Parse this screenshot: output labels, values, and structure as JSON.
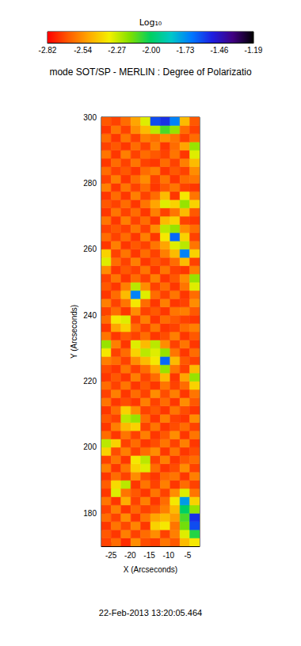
{
  "chart_data": {
    "type": "heatmap",
    "title": "mode SOT/SP - MERLIN : Degree of Polarizatio",
    "x_label": "X (Arcseconds)",
    "y_label": "Y (Arcseconds)",
    "annotation": "22-Feb-2013 13:20:05.464",
    "xlim": [
      -27.5,
      -1.9
    ],
    "xticks": [
      -25,
      -20,
      -15,
      -10,
      -5
    ],
    "ylim": [
      170,
      300
    ],
    "yticks": [
      180,
      200,
      220,
      240,
      260,
      280,
      300
    ],
    "cells": {
      "x_edges": [
        -27.5,
        -24.94,
        -22.38,
        -19.82,
        -17.26,
        -14.7,
        -12.14,
        -9.58,
        -7.02,
        -4.46,
        -1.9
      ],
      "y_edges": [
        170,
        172.5,
        175,
        177.5,
        180,
        182.5,
        185,
        187.5,
        190,
        192.5,
        195,
        197.5,
        200,
        202.5,
        205,
        207.5,
        210,
        212.5,
        215,
        217.5,
        220,
        222.5,
        225,
        227.5,
        230,
        232.5,
        235,
        237.5,
        240,
        242.5,
        245,
        247.5,
        250,
        252.5,
        255,
        257.5,
        260,
        262.5,
        265,
        267.5,
        270,
        272.5,
        275,
        277.5,
        280,
        282.5,
        285,
        287.5,
        290,
        292.5,
        295,
        297.5,
        300
      ],
      "values": [
        [
          -2.7,
          -2.62,
          -2.74,
          -2.55,
          -2.68,
          -2.71,
          -2.6,
          -2.66,
          -2.45,
          -2.35
        ],
        [
          -2.66,
          -2.72,
          -2.58,
          -2.7,
          -2.62,
          -2.55,
          -2.7,
          -2.58,
          -2.3,
          -2.05
        ],
        [
          -2.72,
          -2.6,
          -2.69,
          -2.57,
          -2.72,
          -2.4,
          -2.35,
          -2.6,
          -2.15,
          -1.6
        ],
        [
          -2.62,
          -2.7,
          -2.55,
          -2.72,
          -2.6,
          -2.5,
          -2.45,
          -2.52,
          -2.1,
          -1.55
        ],
        [
          -2.7,
          -2.58,
          -2.72,
          -2.63,
          -2.7,
          -2.66,
          -2.58,
          -2.45,
          -2.0,
          -2.2
        ],
        [
          -2.6,
          -2.72,
          -2.48,
          -2.7,
          -2.58,
          -2.72,
          -2.62,
          -2.35,
          -1.75,
          -2.4
        ],
        [
          -2.72,
          -2.3,
          -2.6,
          -2.66,
          -2.72,
          -2.6,
          -2.7,
          -2.55,
          -2.3,
          -2.6
        ],
        [
          -2.65,
          -2.38,
          -2.25,
          -2.72,
          -2.6,
          -2.7,
          -2.58,
          -2.72,
          -2.62,
          -2.7
        ],
        [
          -2.72,
          -2.62,
          -2.7,
          -2.55,
          -2.68,
          -2.72,
          -2.63,
          -2.6,
          -2.72,
          -2.58
        ],
        [
          -2.58,
          -2.72,
          -2.6,
          -2.4,
          -2.3,
          -2.62,
          -2.72,
          -2.68,
          -2.55,
          -2.7
        ],
        [
          -2.7,
          -2.6,
          -2.72,
          -2.35,
          -2.25,
          -2.7,
          -2.58,
          -2.72,
          -2.66,
          -2.62
        ],
        [
          -2.4,
          -2.68,
          -2.58,
          -2.7,
          -2.62,
          -2.55,
          -2.72,
          -2.6,
          -2.72,
          -2.68
        ],
        [
          -2.25,
          -2.4,
          -2.7,
          -2.62,
          -2.72,
          -2.68,
          -2.6,
          -2.7,
          -2.58,
          -2.72
        ],
        [
          -2.62,
          -2.72,
          -2.6,
          -2.7,
          -2.58,
          -2.72,
          -2.66,
          -2.55,
          -2.72,
          -2.6
        ],
        [
          -2.72,
          -2.58,
          -2.45,
          -2.4,
          -2.7,
          -2.6,
          -2.72,
          -2.68,
          -2.62,
          -2.7
        ],
        [
          -2.66,
          -2.7,
          -2.25,
          -2.2,
          -2.62,
          -2.72,
          -2.58,
          -2.7,
          -2.72,
          -2.55
        ],
        [
          -2.72,
          -2.62,
          -2.4,
          -2.55,
          -2.7,
          -2.66,
          -2.72,
          -2.6,
          -2.68,
          -2.72
        ],
        [
          -2.6,
          -2.72,
          -2.68,
          -2.72,
          -2.58,
          -2.7,
          -2.62,
          -2.72,
          -2.55,
          -2.66
        ],
        [
          -2.7,
          -2.58,
          -2.72,
          -2.62,
          -2.7,
          -2.55,
          -2.68,
          -2.58,
          -2.72,
          -2.6
        ],
        [
          -2.62,
          -2.7,
          -2.6,
          -2.72,
          -2.66,
          -2.72,
          -2.6,
          -2.7,
          -2.62,
          -2.4
        ],
        [
          -2.72,
          -2.66,
          -2.72,
          -2.58,
          -2.7,
          -2.62,
          -2.45,
          -2.72,
          -2.5,
          -2.2
        ],
        [
          -2.68,
          -2.72,
          -2.6,
          -2.7,
          -2.62,
          -2.5,
          -2.2,
          -2.6,
          -2.7,
          -2.45
        ],
        [
          -2.58,
          -2.62,
          -2.7,
          -2.55,
          -2.45,
          -2.35,
          -1.65,
          -2.45,
          -2.66,
          -2.7
        ],
        [
          -2.35,
          -2.7,
          -2.62,
          -2.4,
          -2.25,
          -2.3,
          -2.2,
          -2.6,
          -2.72,
          -2.62
        ],
        [
          -2.2,
          -2.58,
          -2.72,
          -2.3,
          -2.45,
          -2.25,
          -2.55,
          -2.7,
          -2.6,
          -2.72
        ],
        [
          -2.6,
          -2.72,
          -2.66,
          -2.7,
          -2.62,
          -2.72,
          -2.68,
          -2.58,
          -2.72,
          -2.66
        ],
        [
          -2.72,
          -2.5,
          -2.4,
          -2.62,
          -2.7,
          -2.6,
          -2.72,
          -2.7,
          -2.62,
          -2.58
        ],
        [
          -2.62,
          -2.35,
          -2.3,
          -2.7,
          -2.58,
          -2.72,
          -2.62,
          -2.66,
          -2.7,
          -2.72
        ],
        [
          -2.7,
          -2.62,
          -2.72,
          -2.55,
          -2.7,
          -2.66,
          -2.72,
          -2.6,
          -2.58,
          -2.66
        ],
        [
          -2.58,
          -2.7,
          -2.6,
          -2.35,
          -2.62,
          -2.72,
          -2.58,
          -2.72,
          -2.7,
          -2.55
        ],
        [
          -2.72,
          -2.62,
          -2.45,
          -1.7,
          -2.3,
          -2.62,
          -2.7,
          -2.6,
          -2.72,
          -2.62
        ],
        [
          -2.66,
          -2.72,
          -2.58,
          -2.25,
          -2.55,
          -2.7,
          -2.62,
          -2.72,
          -2.6,
          -2.3
        ],
        [
          -2.7,
          -2.6,
          -2.72,
          -2.62,
          -2.7,
          -2.58,
          -2.72,
          -2.66,
          -2.55,
          -2.2
        ],
        [
          -2.55,
          -2.72,
          -2.66,
          -2.7,
          -2.6,
          -2.72,
          -2.6,
          -2.7,
          -2.72,
          -2.58
        ],
        [
          -2.3,
          -2.62,
          -2.7,
          -2.58,
          -2.72,
          -2.66,
          -2.7,
          -2.62,
          -2.45,
          -2.7
        ],
        [
          -2.4,
          -2.7,
          -2.6,
          -2.72,
          -2.62,
          -2.7,
          -2.58,
          -2.45,
          -1.7,
          -2.4
        ],
        [
          -2.72,
          -2.58,
          -2.72,
          -2.66,
          -2.7,
          -2.6,
          -2.5,
          -2.3,
          -2.25,
          -2.6
        ],
        [
          -2.62,
          -2.7,
          -2.62,
          -2.72,
          -2.58,
          -2.72,
          -2.35,
          -1.65,
          -2.4,
          -2.7
        ],
        [
          -2.7,
          -2.66,
          -2.7,
          -2.6,
          -2.7,
          -2.55,
          -2.25,
          -2.2,
          -2.55,
          -2.62
        ],
        [
          -2.6,
          -2.72,
          -2.58,
          -2.7,
          -2.62,
          -2.72,
          -2.45,
          -2.4,
          -2.7,
          -2.72
        ],
        [
          -2.72,
          -2.6,
          -2.7,
          -2.62,
          -2.72,
          -2.58,
          -2.7,
          -2.6,
          -2.45,
          -2.66
        ],
        [
          -2.66,
          -2.7,
          -2.62,
          -2.72,
          -2.6,
          -2.5,
          -2.3,
          -2.4,
          -2.2,
          -2.4
        ],
        [
          -2.72,
          -2.62,
          -2.72,
          -2.58,
          -2.7,
          -2.62,
          -2.45,
          -2.72,
          -2.35,
          -2.6
        ],
        [
          -2.58,
          -2.72,
          -2.6,
          -2.7,
          -2.62,
          -2.72,
          -2.66,
          -2.6,
          -2.7,
          -2.72
        ],
        [
          -2.7,
          -2.58,
          -2.72,
          -2.62,
          -2.55,
          -2.7,
          -2.6,
          -2.72,
          -2.62,
          -2.6
        ],
        [
          -2.62,
          -2.7,
          -2.66,
          -2.72,
          -2.62,
          -2.58,
          -2.72,
          -2.66,
          -2.7,
          -2.55
        ],
        [
          -2.72,
          -2.62,
          -2.7,
          -2.6,
          -2.7,
          -2.72,
          -2.62,
          -2.7,
          -2.58,
          -2.45
        ],
        [
          -2.6,
          -2.72,
          -2.58,
          -2.7,
          -2.62,
          -2.66,
          -2.7,
          -2.6,
          -2.72,
          -2.3
        ],
        [
          -2.7,
          -2.66,
          -2.72,
          -2.62,
          -2.7,
          -2.58,
          -2.72,
          -2.62,
          -2.5,
          -2.2
        ],
        [
          -2.62,
          -2.72,
          -2.6,
          -2.7,
          -2.58,
          -2.62,
          -2.55,
          -2.6,
          -2.7,
          -2.62
        ],
        [
          -2.72,
          -2.6,
          -2.7,
          -2.55,
          -2.45,
          -2.25,
          -2.1,
          -2.2,
          -2.62,
          -2.7
        ],
        [
          -2.66,
          -2.7,
          -2.62,
          -2.5,
          -2.3,
          -1.6,
          -1.55,
          -1.7,
          -2.45,
          -2.66
        ]
      ]
    },
    "colorbar": {
      "title": "Log₁₀",
      "range": [
        -2.82,
        -1.19
      ],
      "ticks": [
        -2.82,
        -2.54,
        -2.27,
        {
          "value": -2,
          "label": "-2.00"
        },
        -1.73,
        -1.46,
        -1.19
      ]
    }
  }
}
